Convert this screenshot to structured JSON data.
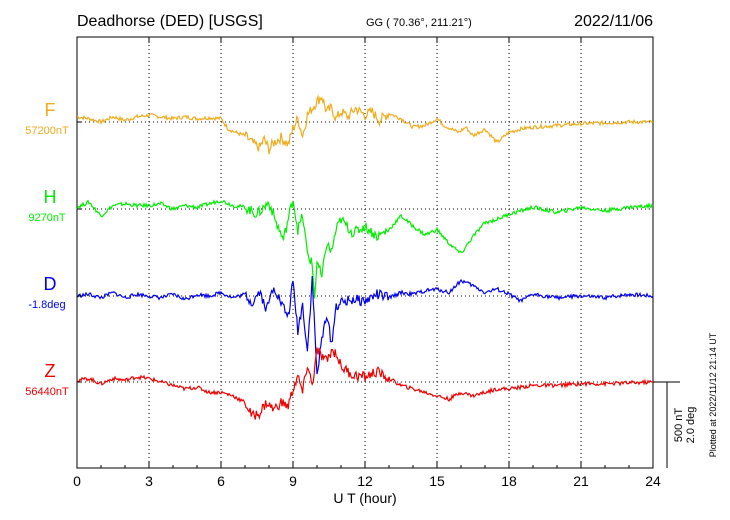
{
  "header": {
    "station": "Deadhorse (DED)  [USGS]",
    "coords": "GG ( 70.36°, 211.21°)",
    "date": "2022/11/06"
  },
  "side_note": "Plotted at 2022/11/12 21:14 UT",
  "scale_bar": {
    "line1": "500 nT",
    "line2": "2.0 deg"
  },
  "chart_data": {
    "type": "line",
    "xlabel": "U T (hour)",
    "xlim": [
      0,
      24
    ],
    "xticks": [
      0,
      3,
      6,
      9,
      12,
      15,
      18,
      21,
      24
    ],
    "x_tick_labels": [
      "0",
      "3",
      "6",
      "9",
      "12",
      "15",
      "18",
      "21",
      "24"
    ],
    "scale_per_division": "500 nT / 2.0 deg",
    "series": [
      {
        "name": "F",
        "baseline_label": "57200nT",
        "color": "#f0ac1c",
        "x": [
          0,
          0.5,
          1,
          1.5,
          2,
          2.5,
          3,
          3.5,
          4,
          4.5,
          5,
          5.5,
          6,
          6.3,
          6.6,
          7,
          7.3,
          7.6,
          7.8,
          8,
          8.2,
          8.5,
          8.8,
          9,
          9.2,
          9.4,
          9.6,
          9.8,
          10,
          10.2,
          10.4,
          10.6,
          10.8,
          11,
          11.3,
          11.6,
          12,
          12.3,
          12.6,
          13,
          13.5,
          14,
          14.5,
          15,
          15.3,
          15.6,
          15.9,
          16.2,
          16.5,
          17,
          17.5,
          18,
          18.5,
          19,
          20,
          21,
          22,
          23,
          24
        ],
        "y": [
          30,
          20,
          0,
          30,
          10,
          30,
          40,
          30,
          20,
          30,
          20,
          25,
          20,
          -40,
          -60,
          -80,
          -120,
          -150,
          -100,
          -160,
          -120,
          -90,
          -130,
          -40,
          20,
          -80,
          40,
          80,
          120,
          150,
          60,
          80,
          20,
          60,
          30,
          80,
          40,
          60,
          10,
          50,
          20,
          -30,
          -20,
          20,
          -20,
          -40,
          -60,
          -30,
          -80,
          -40,
          -120,
          -60,
          -40,
          -30,
          -20,
          -10,
          -5,
          0,
          0
        ],
        "offset": 0
      },
      {
        "name": "H",
        "baseline_label": "9270nT",
        "color": "#00ee00",
        "x": [
          0,
          0.5,
          1,
          1.5,
          2,
          2.5,
          3,
          3.5,
          4,
          4.5,
          5,
          5.5,
          6,
          6.5,
          7,
          7.5,
          8,
          8.3,
          8.6,
          8.8,
          9,
          9.2,
          9.4,
          9.6,
          9.8,
          9.9,
          10,
          10.2,
          10.4,
          10.6,
          10.8,
          11,
          11.5,
          12,
          12.5,
          13,
          13.5,
          14,
          14.5,
          15,
          15.5,
          16,
          16.5,
          17,
          17.5,
          18,
          19,
          20,
          21,
          22,
          23,
          24
        ],
        "y": [
          10,
          40,
          -40,
          20,
          30,
          20,
          20,
          30,
          0,
          20,
          10,
          30,
          50,
          20,
          10,
          -30,
          40,
          -80,
          -180,
          -60,
          60,
          -120,
          -40,
          -260,
          -320,
          -520,
          -300,
          -400,
          -200,
          -250,
          -120,
          -60,
          -140,
          -100,
          -160,
          -120,
          -40,
          -100,
          -150,
          -120,
          -200,
          -260,
          -160,
          -80,
          -60,
          -30,
          10,
          -20,
          10,
          -10,
          10,
          20
        ],
        "offset": 0
      },
      {
        "name": "D",
        "baseline_label": "-1.8deg",
        "color": "#0000ee",
        "x": [
          0,
          0.5,
          1,
          1.5,
          2,
          2.5,
          3,
          3.5,
          4,
          4.5,
          5,
          5.5,
          6,
          6.5,
          7,
          7.3,
          7.6,
          7.9,
          8.2,
          8.5,
          8.8,
          9,
          9.2,
          9.4,
          9.6,
          9.8,
          10,
          10.2,
          10.4,
          10.6,
          10.8,
          11,
          11.5,
          12,
          12.5,
          13,
          13.5,
          14,
          14.5,
          15,
          15.5,
          16,
          16.5,
          17,
          17.5,
          18,
          18.5,
          19,
          20,
          21,
          22,
          23,
          24
        ],
        "y": [
          0,
          10,
          -10,
          20,
          -10,
          10,
          0,
          -10,
          10,
          -20,
          10,
          0,
          20,
          -10,
          10,
          -40,
          30,
          -80,
          60,
          -40,
          -120,
          80,
          -200,
          -50,
          -320,
          100,
          -460,
          -260,
          -100,
          -280,
          -60,
          -40,
          -20,
          -30,
          10,
          -10,
          20,
          10,
          30,
          40,
          20,
          90,
          60,
          20,
          40,
          10,
          -30,
          10,
          -10,
          0,
          -10,
          10,
          0
        ],
        "offset": 0
      },
      {
        "name": "Z",
        "baseline_label": "56440nT",
        "color": "#ee0000",
        "x": [
          0,
          0.5,
          1,
          1.5,
          2,
          2.5,
          3,
          3.5,
          4,
          4.5,
          5,
          5.5,
          6,
          6.5,
          7,
          7.3,
          7.6,
          7.9,
          8.2,
          8.5,
          8.8,
          9,
          9.2,
          9.4,
          9.6,
          9.8,
          10,
          10.2,
          10.4,
          10.6,
          10.8,
          11,
          11.5,
          12,
          12.5,
          13,
          13.5,
          14,
          14.5,
          15,
          15.5,
          16,
          16.5,
          17,
          17.5,
          18,
          19,
          20,
          21,
          22,
          23,
          24
        ],
        "y": [
          10,
          20,
          -10,
          20,
          10,
          30,
          20,
          0,
          -20,
          -40,
          -30,
          -60,
          -60,
          -80,
          -120,
          -200,
          -180,
          -120,
          -160,
          -120,
          -140,
          -40,
          30,
          -60,
          100,
          -20,
          180,
          150,
          120,
          180,
          170,
          90,
          40,
          30,
          60,
          20,
          -20,
          -40,
          -60,
          -80,
          -100,
          -60,
          -80,
          -60,
          -40,
          -40,
          -20,
          -20,
          -10,
          -10,
          -5,
          0
        ],
        "offset": 0
      }
    ]
  }
}
